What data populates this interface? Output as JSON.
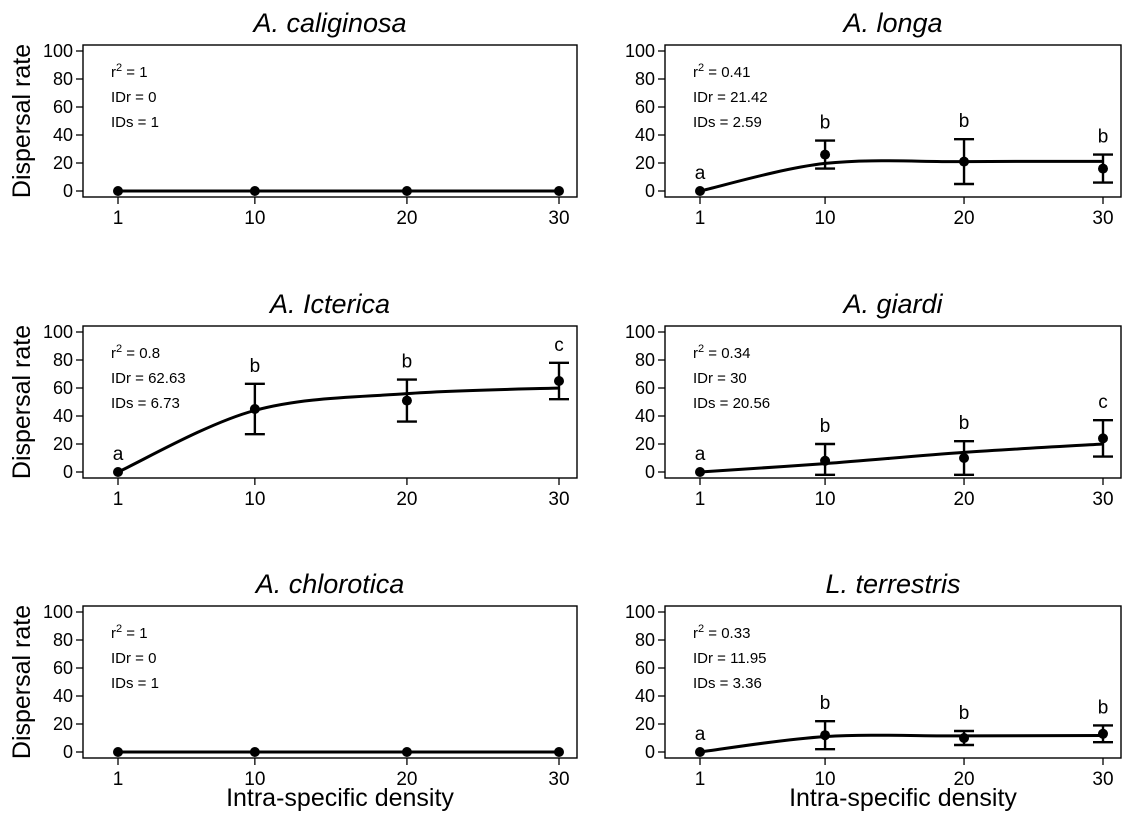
{
  "figure": {
    "ylabel": "Dispersal rate",
    "xlabel": "Intra-specific density"
  },
  "chart_data": [
    {
      "type": "line",
      "title": "A. caliginosa",
      "x": [
        1,
        10,
        20,
        30
      ],
      "y": [
        0,
        0,
        0,
        0
      ],
      "error": [
        0,
        0,
        0,
        0
      ],
      "fit": [
        0,
        0,
        0,
        0
      ],
      "letters": [
        "",
        "",
        "",
        ""
      ],
      "stats": {
        "r2": "1",
        "IDr": "0",
        "IDs": "1"
      },
      "xticks": [
        1,
        10,
        20,
        30
      ],
      "yticks": [
        0,
        20,
        40,
        60,
        80,
        100
      ],
      "ylim": [
        0,
        100
      ],
      "ylabel": "Dispersal rate",
      "xlabel": ""
    },
    {
      "type": "line",
      "title": "A. longa",
      "x": [
        1,
        10,
        20,
        30
      ],
      "y": [
        0,
        26,
        21,
        16
      ],
      "error": [
        0,
        10,
        16,
        10
      ],
      "fit": [
        0,
        19.7,
        21.0,
        21.2
      ],
      "letters": [
        "a",
        "b",
        "b",
        "b"
      ],
      "stats": {
        "r2": "0.41",
        "IDr": "21.42",
        "IDs": "2.59"
      },
      "xticks": [
        1,
        10,
        20,
        30
      ],
      "yticks": [
        0,
        20,
        40,
        60,
        80,
        100
      ],
      "ylim": [
        0,
        100
      ],
      "ylabel": "",
      "xlabel": ""
    },
    {
      "type": "line",
      "title": "A. Icterica",
      "x": [
        1,
        10,
        20,
        30
      ],
      "y": [
        0,
        45,
        51,
        65
      ],
      "error": [
        0,
        18,
        15,
        13
      ],
      "fit": [
        0,
        44,
        56,
        60
      ],
      "letters": [
        "a",
        "b",
        "b",
        "c"
      ],
      "stats": {
        "r2": "0.8",
        "IDr": "62.63",
        "IDs": "6.73"
      },
      "xticks": [
        1,
        10,
        20,
        30
      ],
      "yticks": [
        0,
        20,
        40,
        60,
        80,
        100
      ],
      "ylim": [
        0,
        100
      ],
      "ylabel": "Dispersal rate",
      "xlabel": ""
    },
    {
      "type": "line",
      "title": "A. giardi",
      "x": [
        1,
        10,
        20,
        30
      ],
      "y": [
        0,
        8,
        10,
        24
      ],
      "error": [
        0,
        12,
        12,
        13
      ],
      "fit": [
        0,
        6,
        14,
        20
      ],
      "letters": [
        "a",
        "b",
        "b",
        "c"
      ],
      "stats": {
        "r2": "0.34",
        "IDr": "30",
        "IDs": "20.56"
      },
      "xticks": [
        1,
        10,
        20,
        30
      ],
      "yticks": [
        0,
        20,
        40,
        60,
        80,
        100
      ],
      "ylim": [
        0,
        100
      ],
      "ylabel": "",
      "xlabel": ""
    },
    {
      "type": "line",
      "title": "A. chlorotica",
      "x": [
        1,
        10,
        20,
        30
      ],
      "y": [
        0,
        0,
        0,
        0
      ],
      "error": [
        0,
        0,
        0,
        0
      ],
      "fit": [
        0,
        0,
        0,
        0
      ],
      "letters": [
        "",
        "",
        "",
        ""
      ],
      "stats": {
        "r2": "1",
        "IDr": "0",
        "IDs": "1"
      },
      "xticks": [
        1,
        10,
        20,
        30
      ],
      "yticks": [
        0,
        20,
        40,
        60,
        80,
        100
      ],
      "ylim": [
        0,
        100
      ],
      "ylabel": "Dispersal rate",
      "xlabel": "Intra-specific density"
    },
    {
      "type": "line",
      "title": "L. terrestris",
      "x": [
        1,
        10,
        20,
        30
      ],
      "y": [
        0,
        12,
        10,
        13
      ],
      "error": [
        0,
        10,
        5,
        6
      ],
      "fit": [
        0,
        11,
        11.5,
        11.8
      ],
      "letters": [
        "a",
        "b",
        "b",
        "b"
      ],
      "stats": {
        "r2": "0.33",
        "IDr": "11.95",
        "IDs": "3.36"
      },
      "xticks": [
        1,
        10,
        20,
        30
      ],
      "yticks": [
        0,
        20,
        40,
        60,
        80,
        100
      ],
      "ylim": [
        0,
        100
      ],
      "ylabel": "",
      "xlabel": "Intra-specific density"
    }
  ]
}
